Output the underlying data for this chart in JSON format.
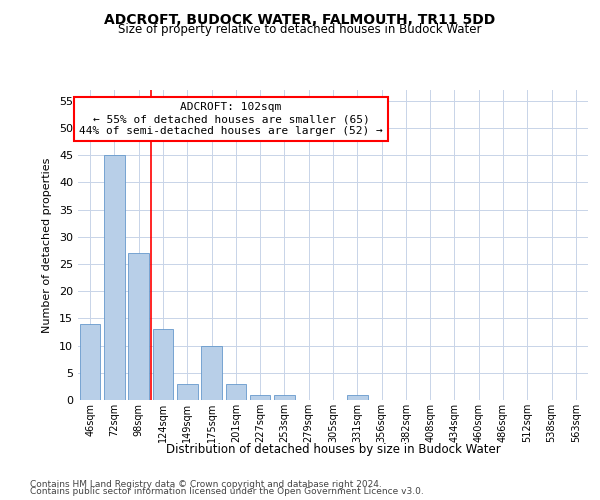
{
  "title": "ADCROFT, BUDOCK WATER, FALMOUTH, TR11 5DD",
  "subtitle": "Size of property relative to detached houses in Budock Water",
  "xlabel": "Distribution of detached houses by size in Budock Water",
  "ylabel": "Number of detached properties",
  "categories": [
    "46sqm",
    "72sqm",
    "98sqm",
    "124sqm",
    "149sqm",
    "175sqm",
    "201sqm",
    "227sqm",
    "253sqm",
    "279sqm",
    "305sqm",
    "331sqm",
    "356sqm",
    "382sqm",
    "408sqm",
    "434sqm",
    "460sqm",
    "486sqm",
    "512sqm",
    "538sqm",
    "563sqm"
  ],
  "values": [
    14,
    45,
    27,
    13,
    3,
    10,
    3,
    1,
    1,
    0,
    0,
    1,
    0,
    0,
    0,
    0,
    0,
    0,
    0,
    0,
    0
  ],
  "bar_color": "#b8cfe8",
  "bar_edge_color": "#6699cc",
  "red_line_x": 2.5,
  "red_line_label": "ADCROFT: 102sqm",
  "annotation_line1": "← 55% of detached houses are smaller (65)",
  "annotation_line2": "44% of semi-detached houses are larger (52) →",
  "ylim": [
    0,
    57
  ],
  "yticks": [
    0,
    5,
    10,
    15,
    20,
    25,
    30,
    35,
    40,
    45,
    50,
    55
  ],
  "footnote1": "Contains HM Land Registry data © Crown copyright and database right 2024.",
  "footnote2": "Contains public sector information licensed under the Open Government Licence v3.0.",
  "background_color": "#ffffff",
  "grid_color": "#c8d4e8"
}
